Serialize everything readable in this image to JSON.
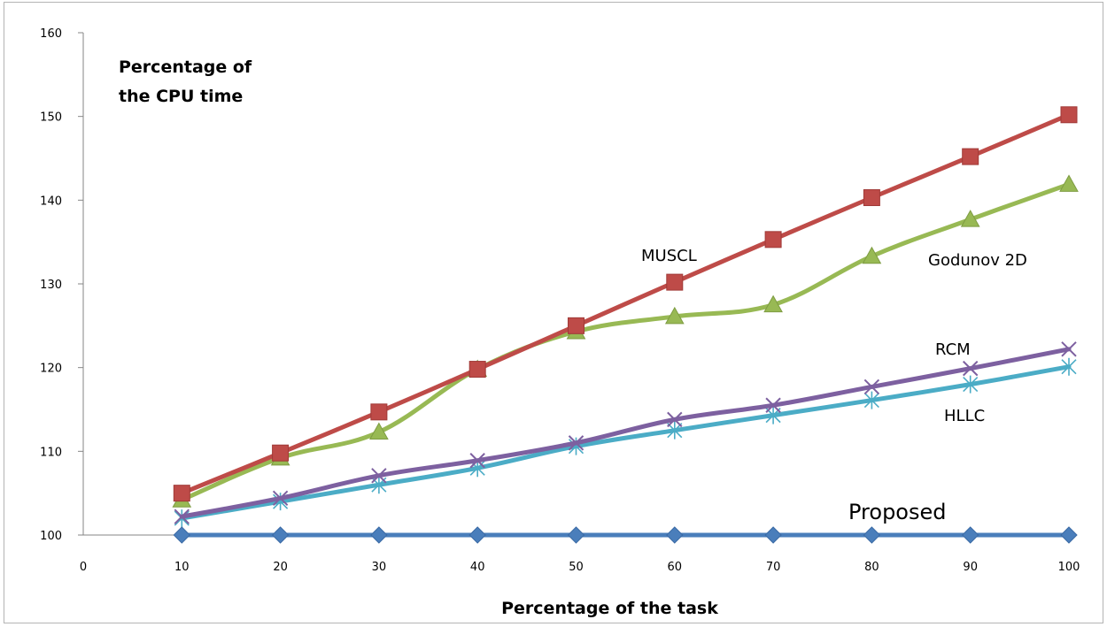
{
  "chart_data": {
    "type": "line",
    "title": "",
    "ylabel_lines": [
      "Percentage of",
      "the CPU time"
    ],
    "xlabel": "Percentage of the task",
    "xlim": [
      0,
      100
    ],
    "ylim": [
      100,
      160
    ],
    "x_ticks": [
      0,
      10,
      20,
      30,
      40,
      50,
      60,
      70,
      80,
      90,
      100
    ],
    "y_ticks": [
      100,
      110,
      120,
      130,
      140,
      150,
      160
    ],
    "x": [
      10,
      20,
      30,
      40,
      50,
      60,
      70,
      80,
      90,
      100
    ],
    "grid": false,
    "legend": "none",
    "series": [
      {
        "name": "Proposed",
        "color": "#4a7ebb",
        "marker": "diamond",
        "values": [
          100,
          100,
          100,
          100,
          100,
          100,
          100,
          100,
          100,
          100
        ]
      },
      {
        "name": "MUSCL",
        "color": "#be4b48",
        "marker": "square",
        "values": [
          105,
          109.8,
          114.7,
          119.8,
          125,
          130.2,
          135.3,
          140.3,
          145.2,
          150.2
        ]
      },
      {
        "name": "Godunov 2D",
        "color": "#98b954",
        "marker": "triangle",
        "values": [
          104.2,
          109.2,
          112.3,
          119.8,
          124.3,
          126.1,
          127.5,
          133.3,
          137.7,
          141.9
        ]
      },
      {
        "name": "RCM",
        "color": "#7d60a0",
        "marker": "x",
        "values": [
          102.2,
          104.4,
          107.1,
          108.9,
          111,
          113.8,
          115.5,
          117.7,
          119.9,
          122.2
        ]
      },
      {
        "name": "HLLC",
        "color": "#4bacc6",
        "marker": "star",
        "values": [
          102,
          104,
          106,
          108,
          110.6,
          112.5,
          114.3,
          116.1,
          118,
          120.1
        ]
      }
    ],
    "annotations": {
      "Proposed": "Proposed",
      "MUSCL": "MUSCL",
      "Godunov 2D": "Godunov 2D",
      "RCM": "RCM",
      "HLLC": "HLLC"
    }
  }
}
